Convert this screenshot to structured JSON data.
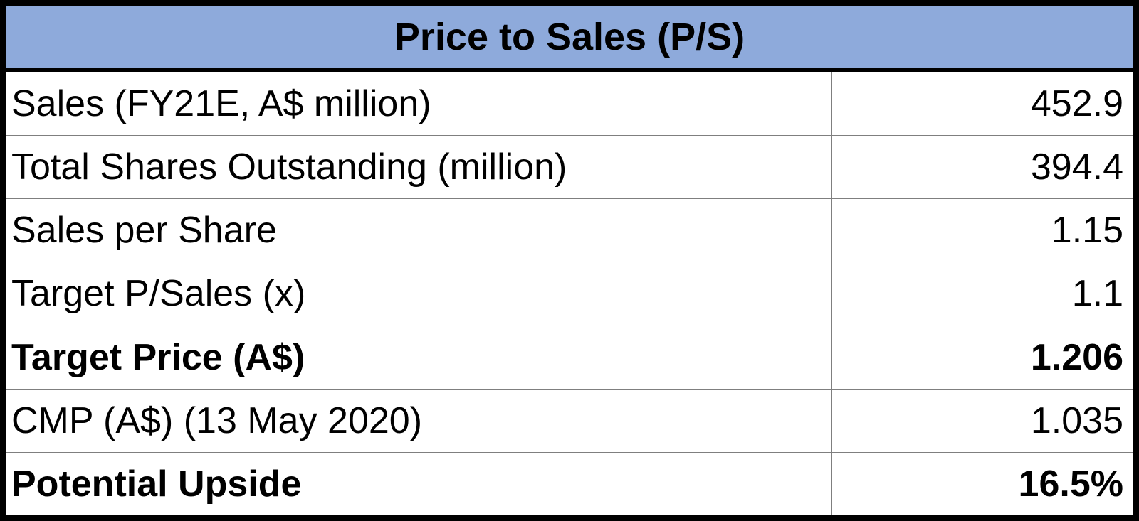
{
  "table": {
    "title": "Price to Sales (P/S)",
    "rows": [
      {
        "label": "Sales (FY21E, A$ million)",
        "value": "452.9",
        "bold": false
      },
      {
        "label": "Total Shares Outstanding (million)",
        "value": "394.4",
        "bold": false
      },
      {
        "label": "Sales per Share",
        "value": "1.15",
        "bold": false
      },
      {
        "label": "Target P/Sales (x)",
        "value": "1.1",
        "bold": false
      },
      {
        "label": "Target Price (A$)",
        "value": "1.206",
        "bold": true
      },
      {
        "label": "CMP (A$) (13 May 2020)",
        "value": "1.035",
        "bold": false
      },
      {
        "label": "Potential Upside",
        "value": "16.5%",
        "bold": true
      }
    ]
  }
}
